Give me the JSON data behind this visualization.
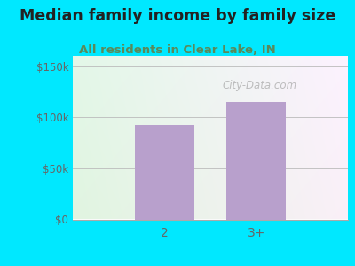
{
  "title": "Median family income by family size",
  "subtitle": "All residents in Clear Lake, IN",
  "categories": [
    "2",
    "3+"
  ],
  "values": [
    92000,
    115000
  ],
  "bar_color": "#b8a0cc",
  "background_outer": "#00e8ff",
  "yticks": [
    0,
    50000,
    100000,
    150000
  ],
  "ytick_labels": [
    "$0",
    "$50k",
    "$100k",
    "$150k"
  ],
  "ylim": [
    0,
    160000
  ],
  "title_color": "#222222",
  "subtitle_color": "#5a8a5a",
  "tick_color": "#666666",
  "title_fontsize": 12.5,
  "subtitle_fontsize": 9.5,
  "watermark": "City-Data.com"
}
